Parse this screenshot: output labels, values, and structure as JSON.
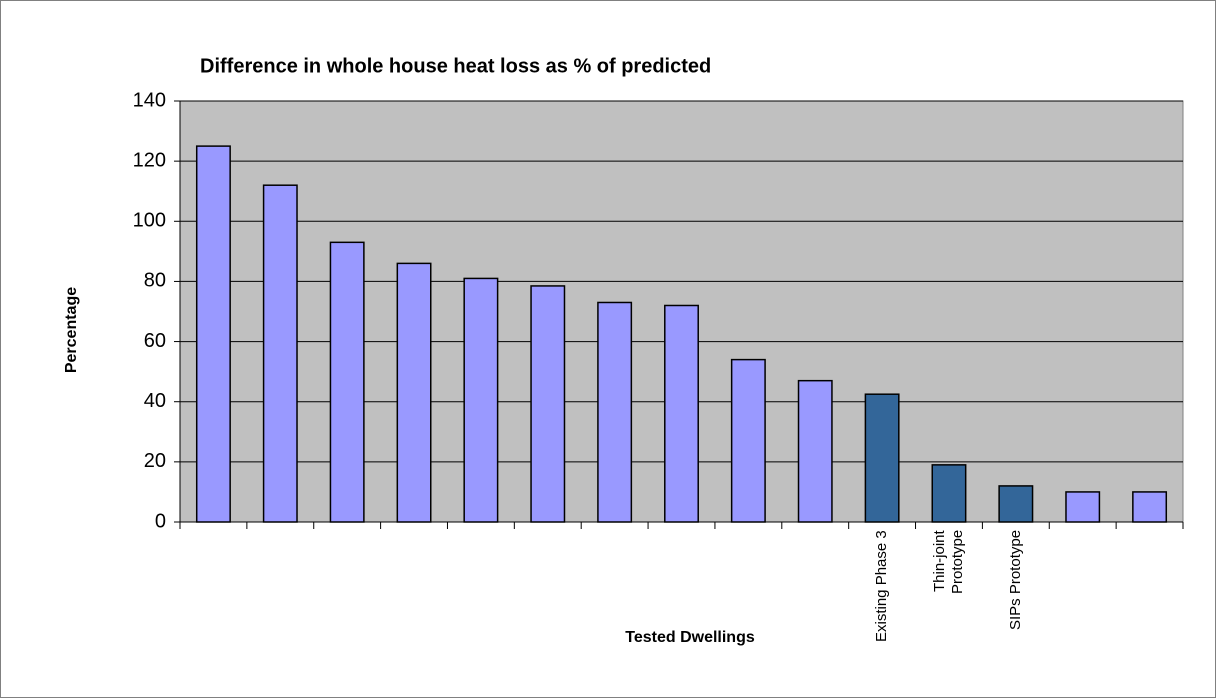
{
  "chart_data": {
    "type": "bar",
    "title": "Difference in whole house heat loss as % of predicted",
    "xlabel": "Tested Dwellings",
    "ylabel": "Percentage",
    "categories": [
      null,
      null,
      null,
      null,
      null,
      null,
      null,
      null,
      null,
      null,
      "Existing Phase 3",
      "Thin-joint\nPrototype",
      "SIPs Prototype",
      null,
      null
    ],
    "values": [
      125,
      112,
      93,
      86,
      81,
      78.5,
      73,
      72,
      54,
      47,
      42.5,
      19,
      12,
      10,
      10
    ],
    "colors": [
      "#9999ff",
      "#9999ff",
      "#9999ff",
      "#9999ff",
      "#9999ff",
      "#9999ff",
      "#9999ff",
      "#9999ff",
      "#9999ff",
      "#9999ff",
      "#336699",
      "#336699",
      "#336699",
      "#9999ff",
      "#9999ff"
    ],
    "ylim": [
      0,
      140
    ],
    "yticks": [
      0,
      20,
      40,
      60,
      80,
      100,
      120,
      140
    ],
    "grid": true,
    "background": "#c0c0c0"
  }
}
